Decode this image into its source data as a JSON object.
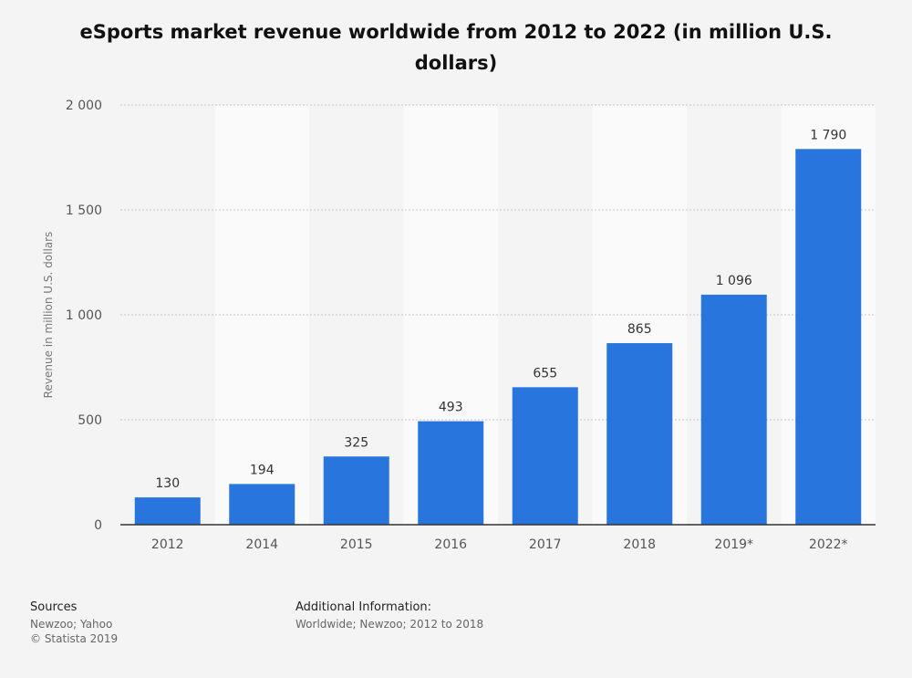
{
  "title": "eSports market revenue worldwide from 2012 to 2022 (in million U.S. dollars)",
  "chart_data": {
    "type": "bar",
    "categories": [
      "2012",
      "2014",
      "2015",
      "2016",
      "2017",
      "2018",
      "2019*",
      "2022*"
    ],
    "values": [
      130,
      194,
      325,
      493,
      655,
      865,
      1096,
      1790
    ],
    "value_labels": [
      "130",
      "194",
      "325",
      "493",
      "655",
      "865",
      "1 096",
      "1 790"
    ],
    "ylabel": "Revenue in million U.S. dollars",
    "ylim": [
      0,
      2000
    ],
    "yticks": [
      0,
      500,
      1000,
      1500,
      2000
    ],
    "ytick_labels": [
      "0",
      "500",
      "1 000",
      "1 500",
      "2 000"
    ],
    "bar_color": "#2775dd",
    "grid": true,
    "legend": "none"
  },
  "footer": {
    "sources_heading": "Sources",
    "sources_text": "Newzoo; Yahoo",
    "copyright": "© Statista 2019",
    "additional_heading": "Additional Information:",
    "additional_text": "Worldwide; Newzoo; 2012 to 2018"
  }
}
